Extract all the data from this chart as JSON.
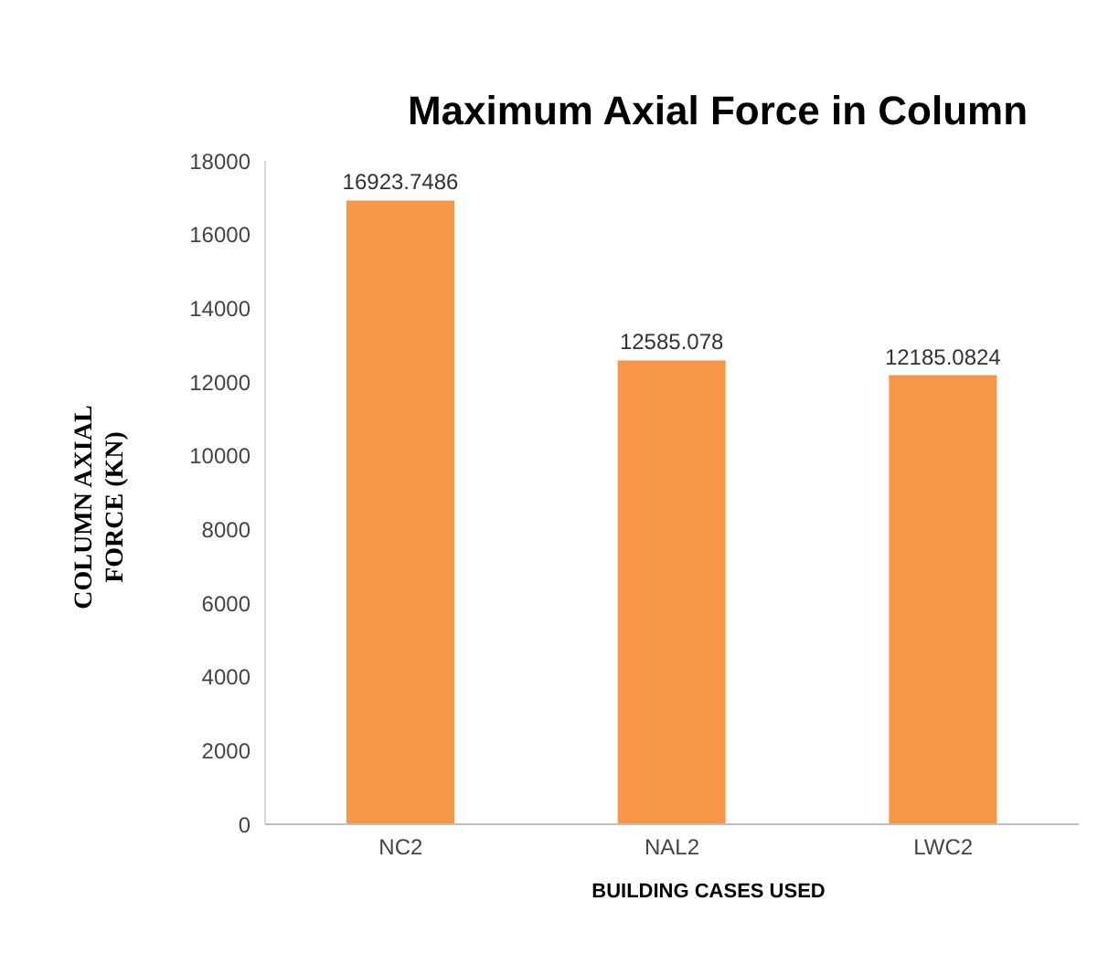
{
  "chart_data": {
    "type": "bar",
    "title": "Maximum Axial Force in Column",
    "xlabel": "BUILDING CASES USED",
    "ylabel": "COLUMN AXIAL FORCE (KN)",
    "categories": [
      "NC2",
      "NAL2",
      "LWC2"
    ],
    "values": [
      16923.7486,
      12585.078,
      12185.0824
    ],
    "color": "#f79646",
    "ylim": [
      0,
      18000
    ],
    "yticks": [
      0,
      2000,
      4000,
      6000,
      8000,
      10000,
      12000,
      14000,
      16000,
      18000
    ],
    "grid": false,
    "data_labels": true
  }
}
